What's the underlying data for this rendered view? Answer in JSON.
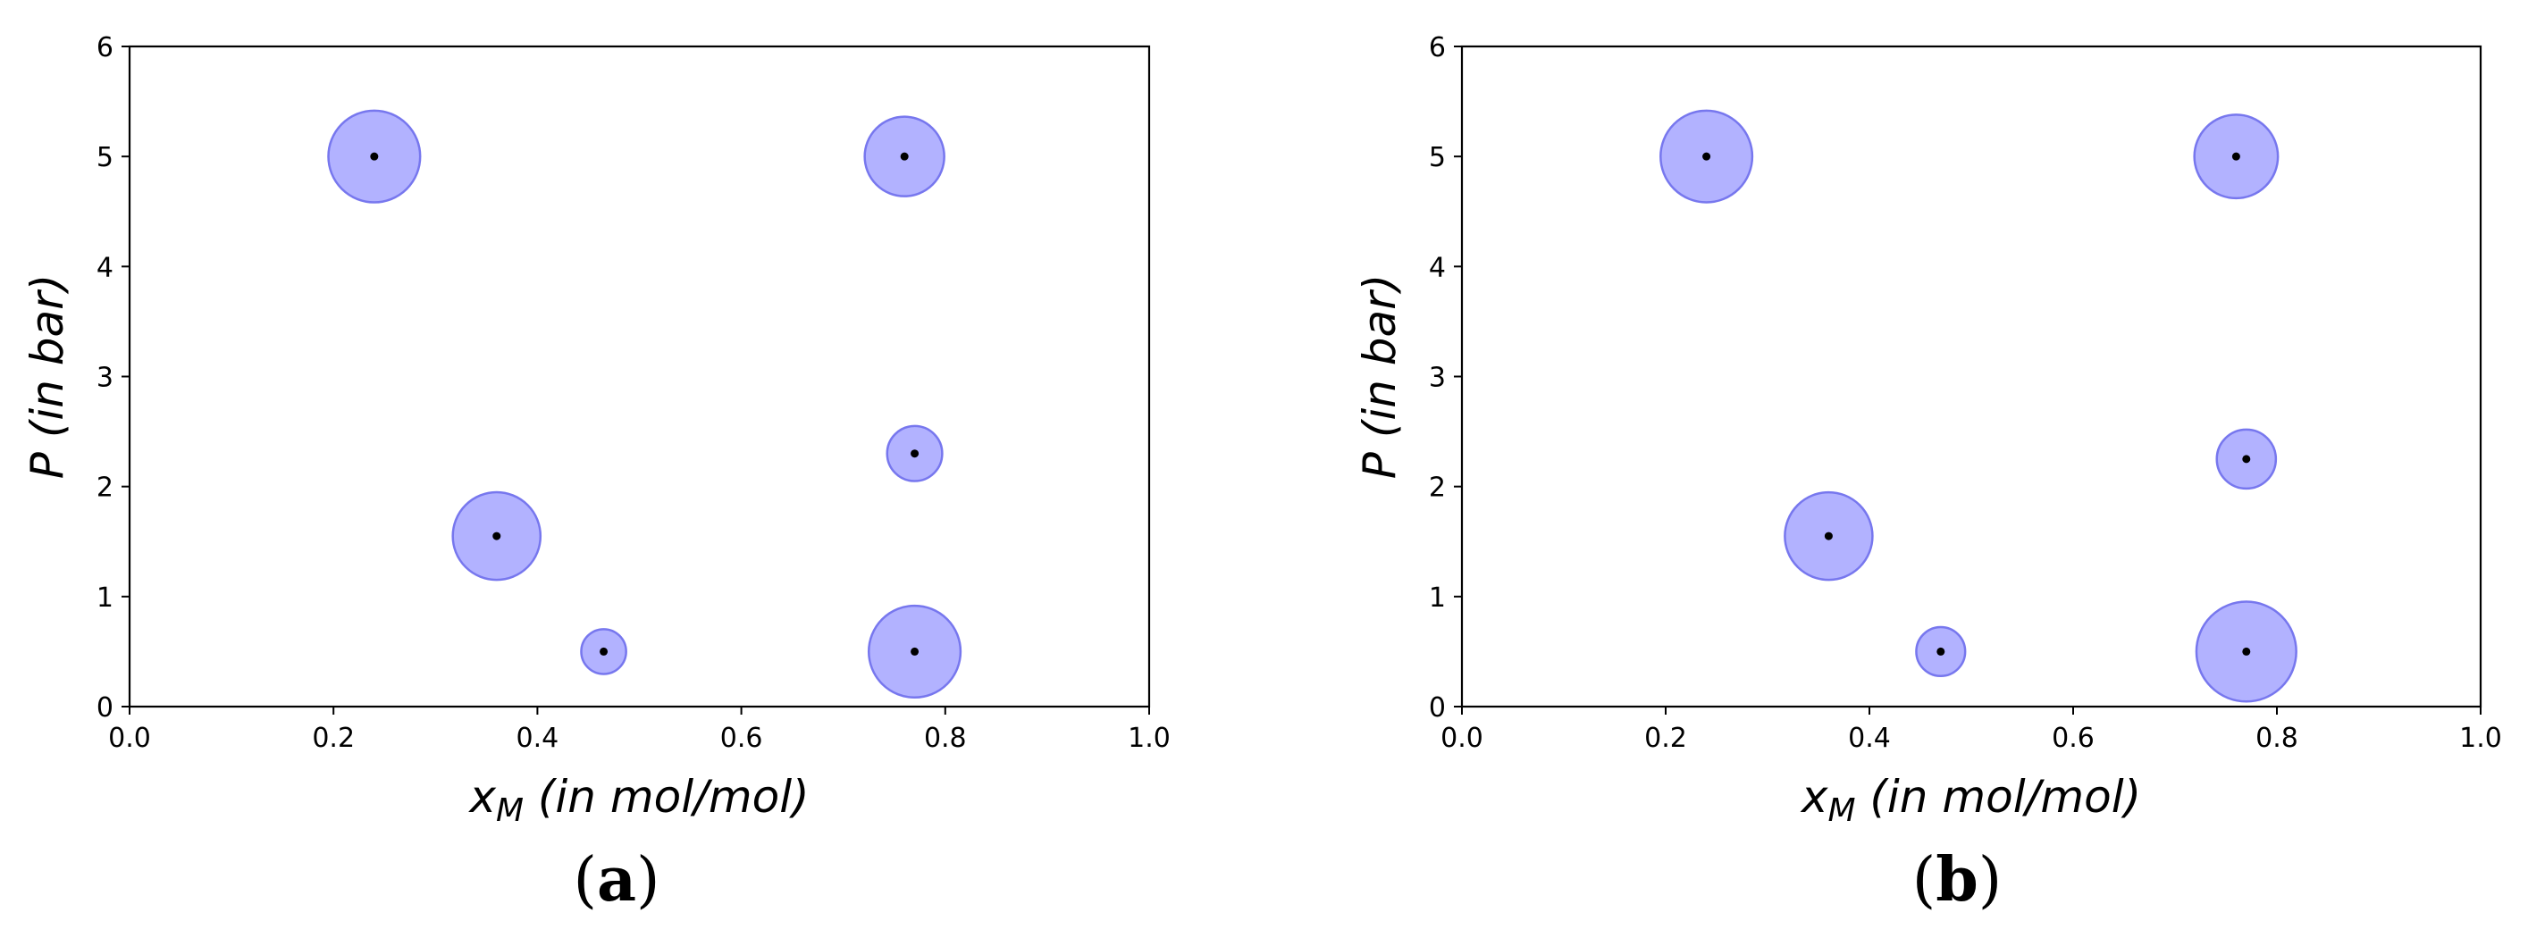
{
  "chart_data": [
    {
      "type": "scatter",
      "panel_label": "(a)",
      "panel_letter": "a",
      "xlabel_main": "x",
      "xlabel_sub": "M",
      "xlabel_unit": "(in mol/mol)",
      "ylabel_main": "P",
      "ylabel_unit": "(in bar)",
      "xlim": [
        0,
        1
      ],
      "ylim": [
        0,
        6
      ],
      "xticks": [
        "0.0",
        "0.2",
        "0.4",
        "0.6",
        "0.8",
        "1.0"
      ],
      "yticks": [
        "0",
        "1",
        "2",
        "3",
        "4",
        "5",
        "6"
      ],
      "grid": false,
      "marker_color": "#000000",
      "bubble_color": "#aaaaff",
      "bubble_edge_color": "#7777ee",
      "points": [
        {
          "x": 0.24,
          "y": 5.0,
          "r": 0.045
        },
        {
          "x": 0.76,
          "y": 5.0,
          "r": 0.039
        },
        {
          "x": 0.77,
          "y": 2.3,
          "r": 0.027
        },
        {
          "x": 0.36,
          "y": 1.55,
          "r": 0.043
        },
        {
          "x": 0.465,
          "y": 0.5,
          "r": 0.022
        },
        {
          "x": 0.77,
          "y": 0.5,
          "r": 0.045
        }
      ]
    },
    {
      "type": "scatter",
      "panel_label": "(b)",
      "panel_letter": "b",
      "xlabel_main": "x",
      "xlabel_sub": "M",
      "xlabel_unit": "(in mol/mol)",
      "ylabel_main": "P",
      "ylabel_unit": "(in bar)",
      "xlim": [
        0,
        1
      ],
      "ylim": [
        0,
        6
      ],
      "xticks": [
        "0.0",
        "0.2",
        "0.4",
        "0.6",
        "0.8",
        "1.0"
      ],
      "yticks": [
        "0",
        "1",
        "2",
        "3",
        "4",
        "5",
        "6"
      ],
      "grid": false,
      "marker_color": "#000000",
      "bubble_color": "#aaaaff",
      "bubble_edge_color": "#7777ee",
      "points": [
        {
          "x": 0.24,
          "y": 5.0,
          "r": 0.045
        },
        {
          "x": 0.76,
          "y": 5.0,
          "r": 0.041
        },
        {
          "x": 0.77,
          "y": 2.25,
          "r": 0.029
        },
        {
          "x": 0.36,
          "y": 1.55,
          "r": 0.043
        },
        {
          "x": 0.47,
          "y": 0.5,
          "r": 0.024
        },
        {
          "x": 0.77,
          "y": 0.5,
          "r": 0.049
        }
      ]
    }
  ]
}
